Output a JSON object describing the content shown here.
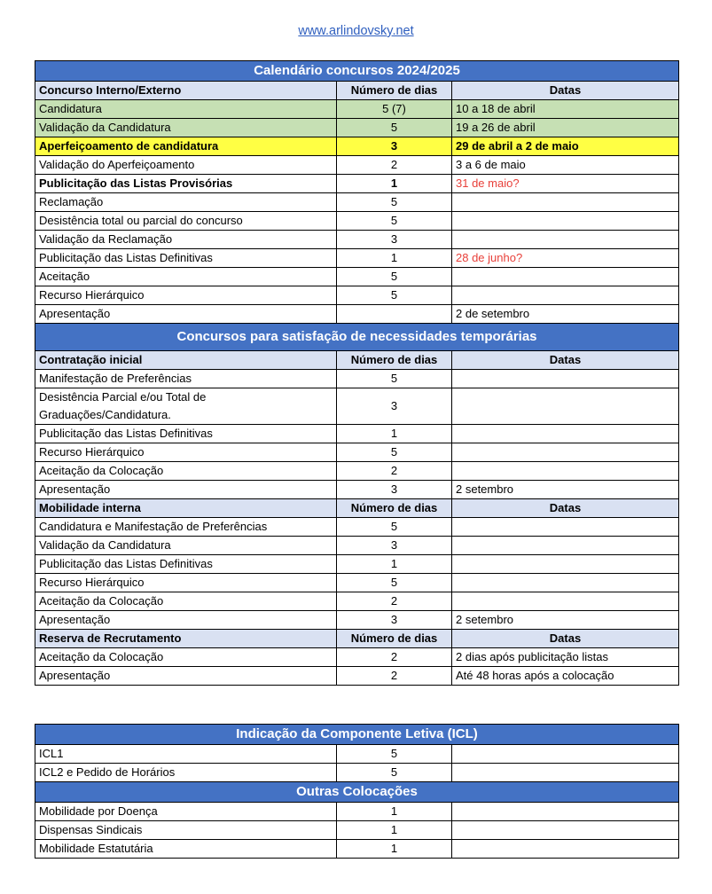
{
  "link": "www.arlindovsky.net",
  "table1": {
    "rows": [
      {
        "type": "title",
        "label": "Calendário concursos 2024/2025"
      },
      {
        "type": "head",
        "cells": [
          "Concurso Interno/Externo",
          "Número de dias",
          "Datas"
        ]
      },
      {
        "type": "green",
        "cells": [
          "Candidatura",
          "5 (7)",
          "10 a 18 de abril"
        ]
      },
      {
        "type": "green",
        "cells": [
          "Validação da Candidatura",
          "5",
          "19 a 26 de abril"
        ]
      },
      {
        "type": "yellow",
        "cells": [
          "Aperfeiçoamento de candidatura",
          "3",
          "29 de abril a 2 de maio"
        ]
      },
      {
        "type": "normal",
        "cells": [
          "Validação do Aperfeiçoamento",
          "2",
          "3 a 6 de maio"
        ]
      },
      {
        "type": "bold",
        "cells": [
          "Publicitação das Listas Provisórias",
          "1",
          "31 de maio?"
        ],
        "date_red": true
      },
      {
        "type": "normal",
        "cells": [
          "Reclamação",
          "5",
          ""
        ]
      },
      {
        "type": "normal",
        "cells": [
          "Desistência total ou parcial do concurso",
          "5",
          ""
        ]
      },
      {
        "type": "normal",
        "cells": [
          "Validação da Reclamação",
          "3",
          ""
        ]
      },
      {
        "type": "normal",
        "cells": [
          "Publicitação das Listas Definitivas",
          "1",
          "28 de junho?"
        ],
        "date_red": true
      },
      {
        "type": "normal",
        "cells": [
          "Aceitação",
          "5",
          ""
        ]
      },
      {
        "type": "normal",
        "cells": [
          "Recurso Hierárquico",
          "5",
          ""
        ]
      },
      {
        "type": "normal",
        "cells": [
          "Apresentação",
          "",
          "2 de setembro"
        ]
      },
      {
        "type": "title tall",
        "label": "Concursos para satisfação de necessidades temporárias"
      },
      {
        "type": "head",
        "cells": [
          "Contratação inicial",
          "Número de dias",
          "Datas"
        ]
      },
      {
        "type": "normal",
        "cells": [
          "Manifestação de Preferências",
          "5",
          ""
        ]
      },
      {
        "type": "multi",
        "cells": [
          "Desistência Parcial e/ou Total de Graduações/Candidatura.",
          "3",
          ""
        ]
      },
      {
        "type": "normal",
        "cells": [
          "Publicitação das Listas Definitivas",
          "1",
          ""
        ]
      },
      {
        "type": "normal",
        "cells": [
          "Recurso Hierárquico",
          "5",
          ""
        ]
      },
      {
        "type": "normal",
        "cells": [
          "Aceitação da Colocação",
          "2",
          ""
        ]
      },
      {
        "type": "normal",
        "cells": [
          "Apresentação",
          "3",
          "2 setembro"
        ]
      },
      {
        "type": "head",
        "cells": [
          "Mobilidade interna",
          "Número de dias",
          "Datas"
        ]
      },
      {
        "type": "normal",
        "cells": [
          "Candidatura e Manifestação de Preferências",
          "5",
          ""
        ]
      },
      {
        "type": "normal",
        "cells": [
          "Validação da Candidatura",
          "3",
          ""
        ]
      },
      {
        "type": "normal",
        "cells": [
          "Publicitação das Listas Definitivas",
          "1",
          ""
        ]
      },
      {
        "type": "normal",
        "cells": [
          "Recurso Hierárquico",
          "5",
          ""
        ]
      },
      {
        "type": "normal",
        "cells": [
          "Aceitação da Colocação",
          "2",
          ""
        ]
      },
      {
        "type": "normal",
        "cells": [
          "Apresentação",
          "3",
          "2 setembro"
        ]
      },
      {
        "type": "head",
        "cells": [
          "Reserva de Recrutamento",
          "Número de dias",
          "Datas"
        ]
      },
      {
        "type": "normal",
        "cells": [
          "Aceitação da Colocação",
          "2",
          "2 dias após publicitação listas"
        ]
      },
      {
        "type": "normal",
        "cells": [
          "Apresentação",
          "2",
          "Até 48 horas após a colocação"
        ]
      }
    ]
  },
  "table2": {
    "rows": [
      {
        "type": "title",
        "label": "Indicação da Componente Letiva (ICL)"
      },
      {
        "type": "normal",
        "cells": [
          "ICL1",
          "5",
          ""
        ]
      },
      {
        "type": "normal",
        "cells": [
          "ICL2 e Pedido de Horários",
          "5",
          ""
        ]
      },
      {
        "type": "title",
        "label": "Outras Colocações"
      },
      {
        "type": "normal",
        "cells": [
          "Mobilidade por Doença",
          "1",
          ""
        ]
      },
      {
        "type": "normal",
        "cells": [
          "Dispensas Sindicais",
          "1",
          ""
        ]
      },
      {
        "type": "normal",
        "cells": [
          "Mobilidade Estatutária",
          "1",
          ""
        ]
      }
    ]
  },
  "colors": {
    "header_blue": "#4472c4",
    "subheader": "#d9e1f2",
    "green": "#c6e0b4",
    "yellow": "#ffff44",
    "red_text": "#e8403a"
  }
}
